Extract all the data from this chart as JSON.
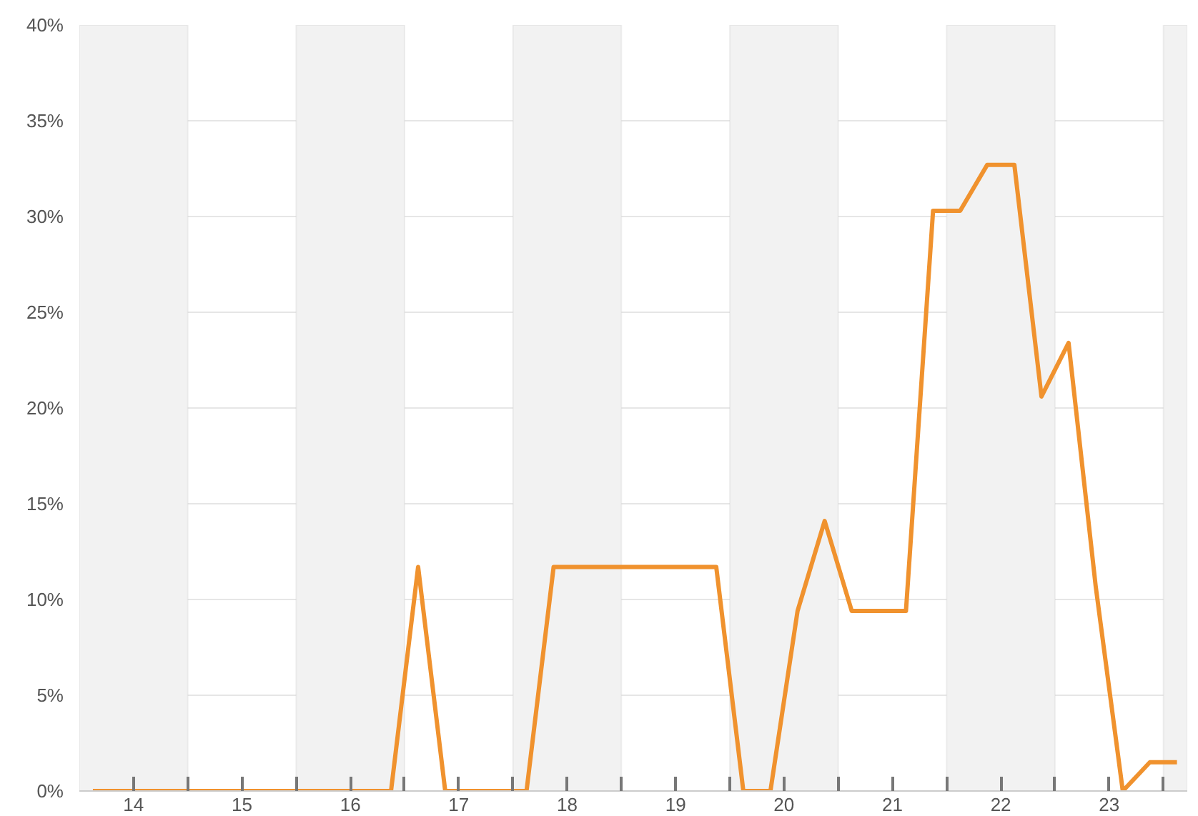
{
  "chart_data": {
    "type": "line",
    "x": [
      14.125,
      14.375,
      14.625,
      14.875,
      15.125,
      15.375,
      15.625,
      15.875,
      16.125,
      16.375,
      16.625,
      16.875,
      17.125,
      17.375,
      17.625,
      17.875,
      18.125,
      18.375,
      18.625,
      18.875,
      19.125,
      19.375,
      19.625,
      19.875,
      20.125,
      20.375,
      20.625,
      20.875,
      21.125,
      21.375,
      21.625,
      21.875,
      22.125,
      22.375,
      22.625,
      22.875,
      23.125,
      23.375,
      23.625,
      23.875,
      24.125
    ],
    "series": [
      {
        "color": "#f0922e",
        "values": [
          0,
          0,
          0,
          0,
          0,
          0,
          0,
          0,
          0,
          0,
          0,
          0,
          11.7,
          0,
          0,
          0,
          0,
          11.7,
          11.7,
          11.7,
          11.7,
          11.7,
          11.7,
          11.7,
          0,
          0,
          9.4,
          14.1,
          9.4,
          9.4,
          9.4,
          30.3,
          30.3,
          32.7,
          32.7,
          20.6,
          23.4,
          10.7,
          0,
          1.5,
          1.5
        ]
      }
    ],
    "xlim": [
      14,
      24.22
    ],
    "xticks": [
      {
        "value": 14.5,
        "label": "14"
      },
      {
        "value": 15,
        "label": null
      },
      {
        "value": 15.5,
        "label": "15"
      },
      {
        "value": 16,
        "label": null
      },
      {
        "value": 16.5,
        "label": "16"
      },
      {
        "value": 17,
        "label": null
      },
      {
        "value": 17.5,
        "label": "17"
      },
      {
        "value": 18,
        "label": null
      },
      {
        "value": 18.5,
        "label": "18"
      },
      {
        "value": 19,
        "label": null
      },
      {
        "value": 19.5,
        "label": "19"
      },
      {
        "value": 20,
        "label": null
      },
      {
        "value": 20.5,
        "label": "20"
      },
      {
        "value": 21,
        "label": null
      },
      {
        "value": 21.5,
        "label": "21"
      },
      {
        "value": 22,
        "label": null
      },
      {
        "value": 22.5,
        "label": "22"
      },
      {
        "value": 23,
        "label": null
      },
      {
        "value": 23.5,
        "label": "23"
      },
      {
        "value": 24,
        "label": null
      }
    ],
    "ylim": [
      0,
      40
    ],
    "yticks": [
      {
        "value": 0,
        "label": "0%"
      },
      {
        "value": 5,
        "label": "5%"
      },
      {
        "value": 10,
        "label": "10%"
      },
      {
        "value": 15,
        "label": "15%"
      },
      {
        "value": 20,
        "label": "20%"
      },
      {
        "value": 25,
        "label": "25%"
      },
      {
        "value": 30,
        "label": "30%"
      },
      {
        "value": 35,
        "label": "35%"
      },
      {
        "value": 40,
        "label": "40%"
      }
    ],
    "bands": [
      {
        "axis": "x",
        "from": 14,
        "to": 15,
        "color": "#f2f2f2"
      },
      {
        "axis": "x",
        "from": 16,
        "to": 17,
        "color": "#f2f2f2"
      },
      {
        "axis": "x",
        "from": 18,
        "to": 19,
        "color": "#f2f2f2"
      },
      {
        "axis": "x",
        "from": 20,
        "to": 21,
        "color": "#f2f2f2"
      },
      {
        "axis": "x",
        "from": 22,
        "to": 23,
        "color": "#f2f2f2"
      },
      {
        "axis": "x",
        "from": 24,
        "to": 24.22,
        "color": "#f2f2f2"
      }
    ],
    "grid": "y",
    "marker": "none",
    "line_style": "solid"
  }
}
